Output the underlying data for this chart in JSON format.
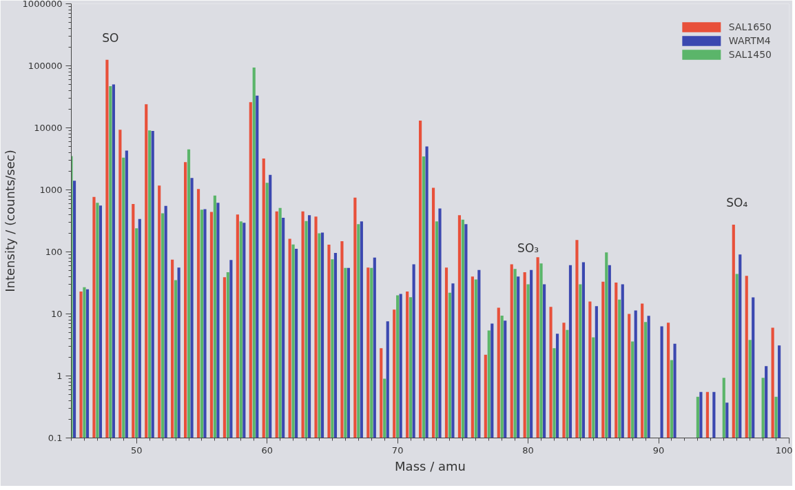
{
  "chart_data": {
    "type": "bar",
    "xlabel": "Mass / amu",
    "ylabel": "Intensity / (counts/sec)",
    "x": [
      45,
      46,
      47,
      48,
      49,
      50,
      51,
      52,
      53,
      54,
      55,
      56,
      57,
      58,
      59,
      60,
      61,
      62,
      63,
      64,
      65,
      66,
      67,
      68,
      69,
      70,
      71,
      72,
      73,
      74,
      75,
      76,
      77,
      78,
      79,
      80,
      81,
      82,
      83,
      84,
      85,
      86,
      87,
      88,
      89,
      90,
      91,
      92,
      93,
      94,
      95,
      96,
      97,
      98,
      99
    ],
    "series": [
      {
        "name": "SAL1650",
        "color": "#e8503a",
        "values": [
          null,
          23,
          770,
          125000,
          9300,
          590,
          24000,
          1170,
          75,
          2800,
          1030,
          440,
          39,
          400,
          26000,
          3200,
          450,
          163,
          450,
          370,
          131,
          149,
          750,
          56,
          2.8,
          11.7,
          23,
          13100,
          1080,
          56,
          390,
          40,
          2.2,
          12.6,
          63,
          47,
          82,
          13,
          7.2,
          155,
          15.8,
          33,
          32,
          10,
          14.7,
          null,
          7.2,
          null,
          null,
          0.55,
          null,
          275,
          41,
          null,
          6.0
        ]
      },
      {
        "name": "WARTM4",
        "color": "#3b48b0",
        "values": [
          1400,
          25,
          560,
          50000,
          4300,
          340,
          8900,
          550,
          56,
          1550,
          490,
          620,
          74,
          295,
          33000,
          1750,
          355,
          112,
          390,
          205,
          96,
          55,
          310,
          81,
          7.6,
          21,
          63,
          5000,
          500,
          31,
          280,
          51,
          7.0,
          7.8,
          40,
          51,
          30,
          4.8,
          61,
          68,
          13.3,
          61,
          30,
          11.4,
          9.3,
          6.3,
          3.3,
          null,
          0.55,
          0.55,
          0.37,
          91,
          18.5,
          1.44,
          3.1
        ]
      },
      {
        "name": "SAL1450",
        "color": "#5bb56a",
        "values": [
          3500,
          27,
          620,
          47000,
          3300,
          240,
          9100,
          420,
          35,
          4500,
          480,
          810,
          47,
          310,
          94000,
          1300,
          510,
          132,
          315,
          200,
          76,
          55,
          280,
          55,
          0.9,
          20,
          18.6,
          3450,
          310,
          22,
          330,
          36,
          5.4,
          9.4,
          53,
          30,
          65,
          2.8,
          5.5,
          30,
          4.2,
          98,
          17,
          3.6,
          7.4,
          null,
          1.8,
          null,
          0.46,
          null,
          0.93,
          44,
          3.8,
          0.93,
          0.46
        ]
      }
    ],
    "log": true,
    "xlim": [
      45,
      100
    ],
    "xticks": [
      50,
      60,
      70,
      80,
      90,
      100
    ],
    "ylim": [
      0.1,
      1000000
    ],
    "yticks": [
      0.1,
      1,
      10,
      100,
      1000,
      10000,
      100000,
      1000000
    ],
    "grid": false,
    "legend": "top right",
    "annotations": [
      {
        "text": "SO",
        "x": 48,
        "y": 125000
      },
      {
        "text": "SO₃",
        "x": 80,
        "y": 51
      },
      {
        "text": "SO₄",
        "x": 96,
        "y": 275
      }
    ]
  }
}
